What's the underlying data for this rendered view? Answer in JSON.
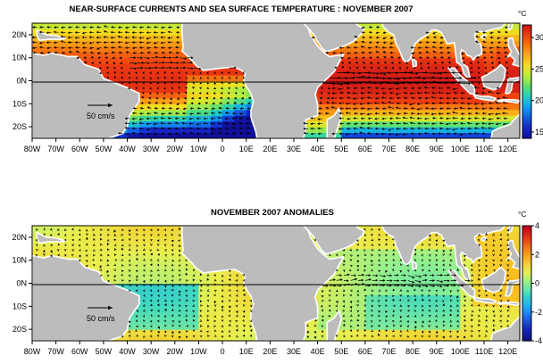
{
  "panels": [
    {
      "title": "NEAR-SURFACE CURRENTS AND SEA SURFACE TEMPERATURE : NOVEMBER 2007",
      "kind": "sst",
      "colorbar": {
        "unit": "°C",
        "ticks": [
          "30",
          "25",
          "20",
          "15"
        ],
        "tick_values": [
          30,
          25,
          20,
          15
        ],
        "range": [
          14,
          32
        ],
        "colors": [
          "#d01818",
          "#f04010",
          "#f57a10",
          "#f8b018",
          "#f0e020",
          "#b8ec40",
          "#60e070",
          "#20d0c0",
          "#10a0f0",
          "#1060e8",
          "#1828c8",
          "#10109a"
        ]
      },
      "scale_arrow_label": "50 cm/s"
    },
    {
      "title": "NOVEMBER 2007 ANOMALIES",
      "kind": "anomaly",
      "colorbar": {
        "unit": "°C",
        "ticks": [
          "4",
          "2",
          "0",
          "-2",
          "-4"
        ],
        "tick_values": [
          4,
          2,
          0,
          -2,
          -4
        ],
        "range": [
          -4,
          4
        ],
        "colors": [
          "#c00020",
          "#e83818",
          "#f58020",
          "#f8c020",
          "#e8f050",
          "#90f090",
          "#40d8c0",
          "#20b0f0",
          "#2068e8",
          "#1828c0",
          "#101080"
        ]
      },
      "scale_arrow_label": "50 cm/s"
    }
  ],
  "lon_ticks": [
    "80W",
    "70W",
    "60W",
    "50W",
    "40W",
    "30W",
    "20W",
    "10W",
    "0",
    "10E",
    "20E",
    "30E",
    "40E",
    "50E",
    "60E",
    "70E",
    "80E",
    "90E",
    "100E",
    "110E",
    "120E"
  ],
  "lat_ticks": [
    "20N",
    "10N",
    "0N",
    "10S",
    "20S"
  ],
  "map_extent": {
    "lon": [
      -80,
      125
    ],
    "lat": [
      -25,
      25
    ]
  },
  "colors": {
    "land": "#bcbcbc",
    "coast": "#ffffff",
    "arrow": "#000000"
  }
}
